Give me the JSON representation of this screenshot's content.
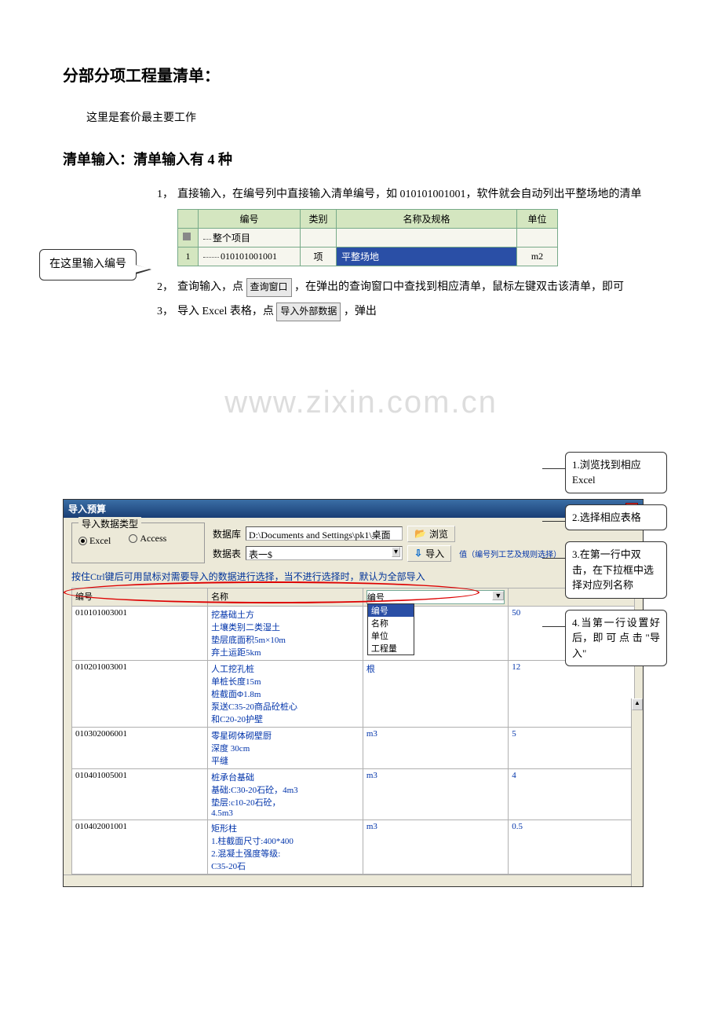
{
  "headings": {
    "h1": "分部分项工程量清单：",
    "para1": "这里是套价最主要工作",
    "h2": "清单输入：清单输入有 4 种"
  },
  "watermark": "www.zixin.com.cn",
  "list": {
    "i1_num": "1，",
    "i1_text": "直接输入，在编号列中直接输入清单编号，如 010101001001，软件就会自动列出平整场地的清单",
    "i2_num": "2，",
    "i2_text_a": "查询输入，点 ",
    "i2_chip": "查询窗口",
    "i2_text_b": " ，在弹出的查询窗口中查找到相应清单，鼠标左键双击该清单，即可",
    "i3_num": "3，",
    "i3_text_a": "导入 Excel 表格，点 ",
    "i3_chip": "导入外部数据",
    "i3_text_b": " ，弹出"
  },
  "callout_left": "在这里输入编号",
  "mini": {
    "th0": "",
    "th1": "编号",
    "th2": "类别",
    "th3": "名称及规格",
    "th4": "单位",
    "r0_c1": "整个项目",
    "r1_c0": "1",
    "r1_c1": "010101001001",
    "r1_c2": "项",
    "r1_c3": "平整场地",
    "r1_c4": "m2",
    "col_widths": {
      "c0": 26,
      "c1": 130,
      "c2": 46,
      "c3": 230,
      "c4": 52
    }
  },
  "dlg": {
    "title": "导入预算",
    "legend": "导入数据类型",
    "radio_excel": "Excel",
    "radio_access": "Access",
    "db_lbl": "数据库",
    "db_val": "D:\\Documents and Settings\\pk1\\桌面",
    "browse": "浏览",
    "tbl_lbl": "数据表",
    "tbl_val": "表一$",
    "import_btn": "导入",
    "legend2": "值（编号列工艺及规则选择）",
    "hint": "按住Ctrl键后可用鼠标对需要导入的数据进行选择，当不进行选择时，默认为全部导入",
    "grid": {
      "headers": [
        "编号",
        "名称",
        "",
        ""
      ],
      "dd": {
        "trigger": "编号",
        "options": [
          "编号",
          "名称",
          "单位",
          "工程量"
        ]
      },
      "rows": [
        {
          "c0": "010101003001",
          "c1": "挖基础土方\n  土壤类别二类湿土\n  垫层底面积5m×10m\n  弃土运距5km",
          "c2": "",
          "c3": "50"
        },
        {
          "c0": "010201003001",
          "c1": "人工挖孔桩\n  单桩长度15m\n  桩截面Φ1.8m\n  泵送C35-20商品砼桩心\n和C20-20护壁",
          "c2": "根",
          "c3": "12"
        },
        {
          "c0": "010302006001",
          "c1": "零星砌体砌壁厨\n  深度  30cm\n  平缝",
          "c2": "m3",
          "c3": "5"
        },
        {
          "c0": "010401005001",
          "c1": "桩承台基础\n  基础:C30-20石砼，4m3\n  垫层:c10-20石砼，\n4.5m3",
          "c2": "m3",
          "c3": "4"
        },
        {
          "c0": "010402001001",
          "c1": "矩形柱\n  1.柱截面尺寸:400*400\n  2.混凝土强度等级:\nC35-20石",
          "c2": "m3",
          "c3": "0.5"
        }
      ]
    }
  },
  "callouts_r": {
    "c1": "1.浏览找到相应 Excel",
    "c2": "2.选择相应表格",
    "c3": "3.在第一行中双击，在下拉框中选择对应列名称",
    "c4": "4.当第一行设置好后，即 可 点 击 \"导入\""
  },
  "colors": {
    "header_green": "#d4e6c0",
    "cell_bg": "#f6f6ee",
    "border_green": "#7a8",
    "sel_blue": "#2a4fa6",
    "dlg_bg": "#ece9d8",
    "link_blue": "#0033aa",
    "ellipse": "#d00"
  }
}
